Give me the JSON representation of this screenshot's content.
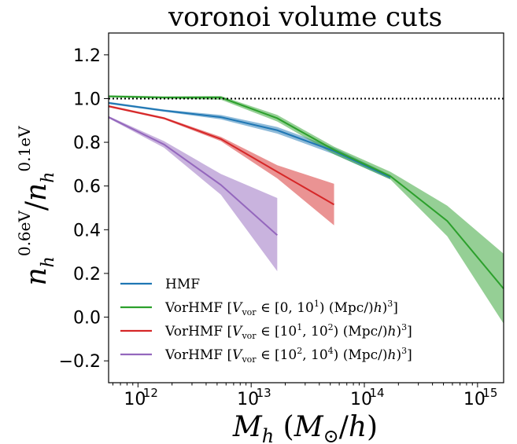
{
  "chart_data": {
    "type": "line",
    "title": "voronoi volume cuts",
    "xlabel": "M_h (M_⊙/h)",
    "ylabel": "n_h^0.6eV / n_h^0.1eV",
    "xscale": "log",
    "xlim": [
      550000000000.0,
      1700000000000000.0
    ],
    "ylim": [
      -0.3,
      1.3
    ],
    "yticks": [
      -0.2,
      0.0,
      0.2,
      0.4,
      0.6,
      0.8,
      1.0,
      1.2
    ],
    "ytick_labels": [
      "−0.2",
      "0.0",
      "0.2",
      "0.4",
      "0.6",
      "0.8",
      "1.0",
      "1.2"
    ],
    "xtick_exponents": [
      "12",
      "13",
      "14",
      "15"
    ],
    "reference_line": {
      "y": 1.0,
      "style": "dotted",
      "color": "#000000"
    },
    "legend_position": "lower-left",
    "series": [
      {
        "name": "HMF",
        "color": "#1f77b4",
        "x": [
          550000000000.0,
          1700000000000.0,
          5400000000000.0,
          17000000000000.0,
          54000000000000.0,
          170000000000000.0
        ],
        "y": [
          0.98,
          0.945,
          0.915,
          0.855,
          0.76,
          0.64
        ],
        "lower": [
          0.975,
          0.94,
          0.905,
          0.84,
          0.745,
          0.63
        ],
        "upper": [
          0.985,
          0.95,
          0.925,
          0.87,
          0.775,
          0.65
        ]
      },
      {
        "name": "VorHMF [V_vor ∈ [0, 10^1) (Mpc/h)^3]",
        "color": "#2ca02c",
        "x": [
          550000000000.0,
          1700000000000.0,
          5400000000000.0,
          17000000000000.0,
          54000000000000.0,
          170000000000000.0,
          540000000000000.0,
          1700000000000000.0
        ],
        "y": [
          1.01,
          1.005,
          1.005,
          0.91,
          0.765,
          0.645,
          0.44,
          0.13
        ],
        "lower": [
          1.005,
          1.0,
          0.995,
          0.895,
          0.745,
          0.63,
          0.37,
          -0.03
        ],
        "upper": [
          1.015,
          1.01,
          1.012,
          0.925,
          0.78,
          0.665,
          0.51,
          0.29
        ]
      },
      {
        "name": "VorHMF [V_vor ∈ [10^1, 10^2) (Mpc/h)^3]",
        "color": "#d62728",
        "x": [
          550000000000.0,
          1700000000000.0,
          5400000000000.0,
          17000000000000.0,
          54000000000000.0
        ],
        "y": [
          0.965,
          0.91,
          0.815,
          0.665,
          0.515
        ],
        "lower": [
          0.96,
          0.905,
          0.805,
          0.635,
          0.42
        ],
        "upper": [
          0.97,
          0.915,
          0.825,
          0.695,
          0.61
        ]
      },
      {
        "name": "VorHMF [V_vor ∈ [10^2, 10^4) (Mpc/h)^3]",
        "color": "#9467bd",
        "x": [
          550000000000.0,
          1700000000000.0,
          5400000000000.0,
          17000000000000.0
        ],
        "y": [
          0.915,
          0.79,
          0.605,
          0.375
        ],
        "lower": [
          0.91,
          0.775,
          0.56,
          0.21
        ],
        "upper": [
          0.92,
          0.805,
          0.655,
          0.545
        ]
      }
    ],
    "legend": [
      {
        "prefix": "HMF",
        "range": "",
        "unit": ""
      },
      {
        "prefix": "VorHMF [",
        "range": "[0, 10",
        "sup": "1",
        "close": ")",
        "unit": "(Mpc/h)",
        "unitsup": "3",
        "end": "]"
      },
      {
        "prefix": "VorHMF [",
        "range": "[10",
        "sup1": "1",
        "mid": ", 10",
        "sup": "2",
        "close": ")",
        "unit": "(Mpc/h)",
        "unitsup": "3",
        "end": "]"
      },
      {
        "prefix": "VorHMF [",
        "range": "[10",
        "sup1": "2",
        "mid": ", 10",
        "sup": "4",
        "close": ")",
        "unit": "(Mpc/h)",
        "unitsup": "3",
        "end": "]"
      }
    ]
  }
}
